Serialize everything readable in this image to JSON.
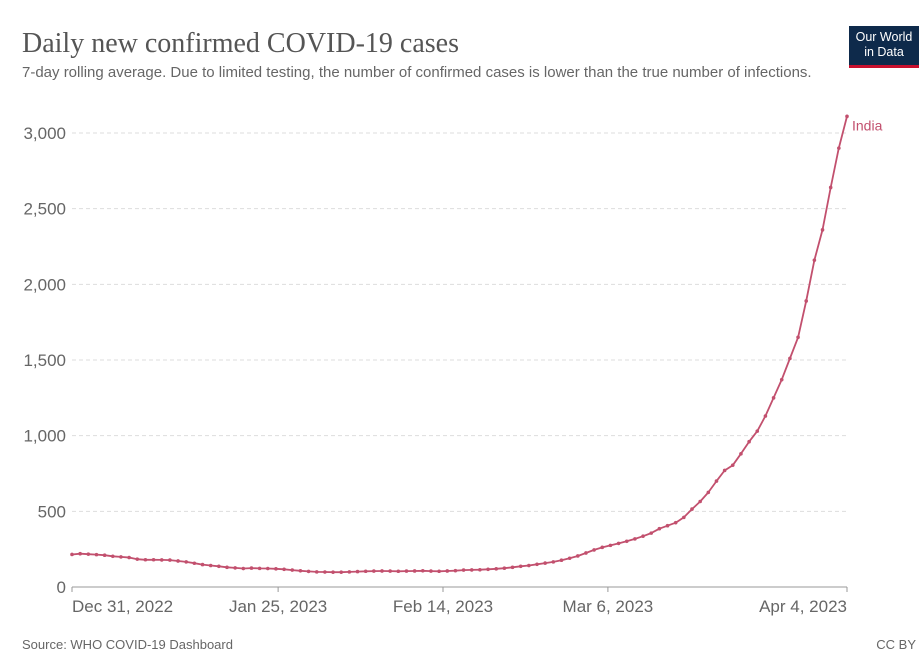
{
  "header": {
    "title": "Daily new confirmed COVID-19 cases",
    "subtitle": "7-day rolling average. Due to limited testing, the number of confirmed cases is lower than the true number of infections.",
    "logo_line1": "Our World",
    "logo_line2": "in Data"
  },
  "footer": {
    "source": "Source: WHO COVID-19 Dashboard",
    "license": "CC BY"
  },
  "chart_data": {
    "type": "line",
    "title": "Daily new confirmed COVID-19 cases",
    "x_start": "2022-12-31",
    "x_end": "2023-04-04",
    "x_ticks": [
      "Dec 31, 2022",
      "Jan 25, 2023",
      "Feb 14, 2023",
      "Mar 6, 2023",
      "Apr 4, 2023"
    ],
    "x_tick_dates": [
      "2022-12-31",
      "2023-01-25",
      "2023-02-14",
      "2023-03-06",
      "2023-04-04"
    ],
    "y_ticks": [
      "0",
      "500",
      "1,000",
      "1,500",
      "2,000",
      "2,500",
      "3,000"
    ],
    "y_tick_values": [
      0,
      500,
      1000,
      1500,
      2000,
      2500,
      3000
    ],
    "ylim": [
      0,
      3000
    ],
    "grid": true,
    "series": [
      {
        "name": "India",
        "color": "#c2506e",
        "values": [
          215,
          220,
          217,
          214,
          210,
          203,
          199,
          195,
          184,
          180,
          180,
          179,
          178,
          172,
          166,
          157,
          148,
          142,
          137,
          130,
          126,
          122,
          125,
          123,
          122,
          120,
          117,
          112,
          107,
          103,
          100,
          99,
          98,
          98,
          100,
          102,
          104,
          105,
          106,
          105,
          104,
          105,
          106,
          107,
          105,
          104,
          106,
          108,
          112,
          113,
          114,
          117,
          120,
          124,
          130,
          137,
          142,
          150,
          158,
          166,
          177,
          190,
          205,
          225,
          245,
          262,
          275,
          288,
          302,
          318,
          336,
          356,
          385,
          405,
          425,
          460,
          515,
          565,
          625,
          700,
          770,
          805,
          880,
          960,
          1030,
          1130,
          1250,
          1370,
          1510,
          1650,
          1890,
          2160,
          2360,
          2640,
          2900,
          3110
        ]
      }
    ]
  }
}
